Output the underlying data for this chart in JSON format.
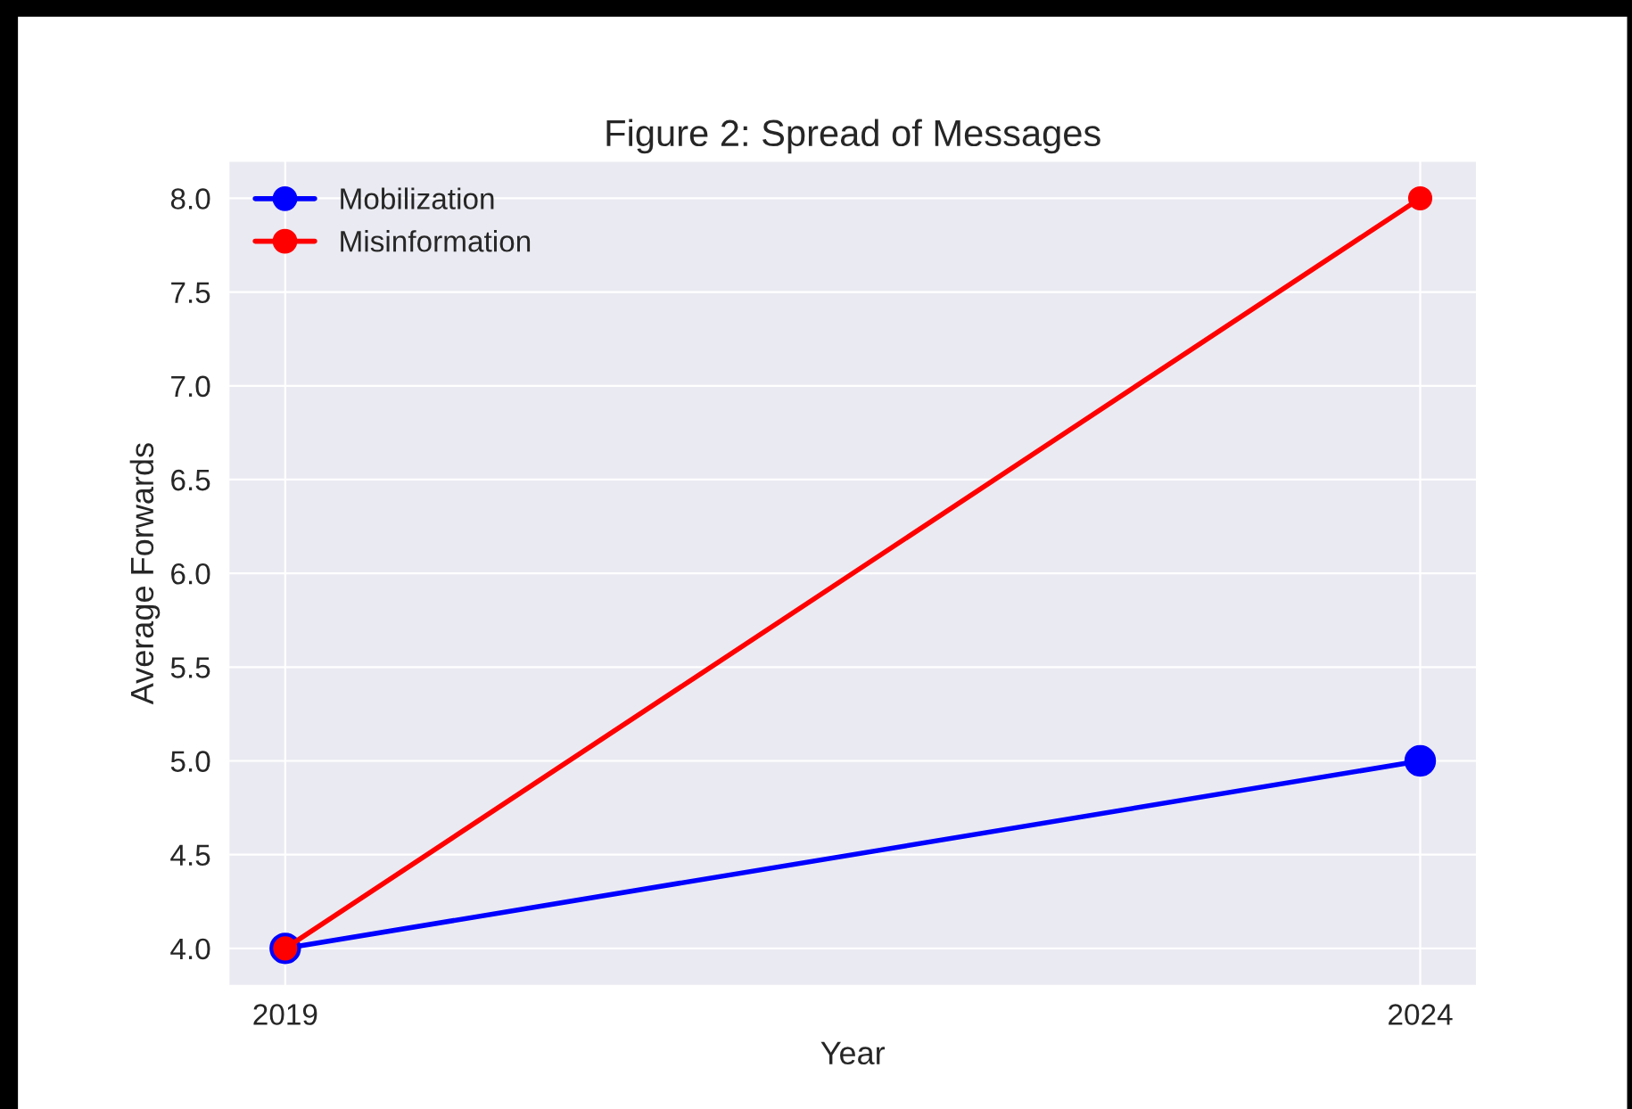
{
  "chart_data": {
    "type": "line",
    "title": "Figure 2: Spread of Messages",
    "xlabel": "Year",
    "ylabel": "Average Forwards",
    "x": [
      2019,
      2024
    ],
    "series": [
      {
        "name": "Mobilization",
        "color": "#0000ff",
        "values": [
          4.0,
          5.0
        ]
      },
      {
        "name": "Misinformation",
        "color": "#ff0000",
        "values": [
          4.0,
          8.0
        ]
      }
    ],
    "xlim": [
      2018.75,
      2024.25
    ],
    "xticks": [
      2019,
      2024
    ],
    "ylim": [
      3.8,
      8.2
    ],
    "yticks": [
      {
        "value": 4.0,
        "label": "4.0"
      },
      {
        "value": 4.5,
        "label": "4.5"
      },
      {
        "value": 5.0,
        "label": "5.0"
      },
      {
        "value": 5.5,
        "label": "5.5"
      },
      {
        "value": 6.0,
        "label": "6.0"
      },
      {
        "value": 6.5,
        "label": "6.5"
      },
      {
        "value": 7.0,
        "label": "7.0"
      },
      {
        "value": 7.5,
        "label": "7.5"
      },
      {
        "value": 8.0,
        "label": "8.0"
      }
    ],
    "grid": true,
    "legend": "top left",
    "marker": "circle",
    "line_style": "solid"
  }
}
